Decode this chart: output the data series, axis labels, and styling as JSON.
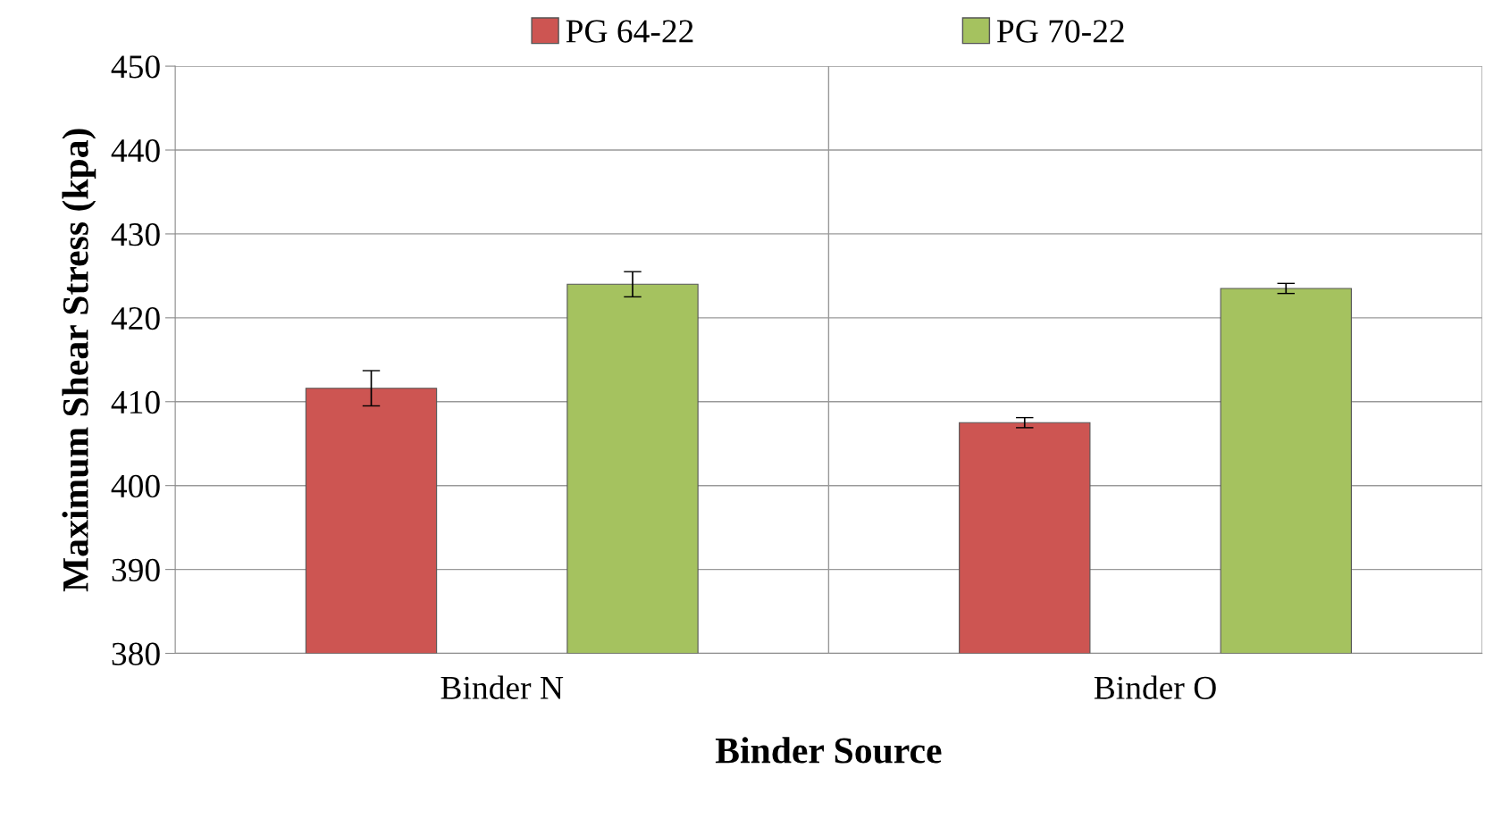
{
  "chart_data": {
    "type": "bar",
    "xlabel": "Binder Source",
    "ylabel": "Maximum Shear Stress (kpa)",
    "categories": [
      "Binder N",
      "Binder O"
    ],
    "series": [
      {
        "name": "PG 64-22",
        "color": "#cd5552",
        "values": [
          411.6,
          407.5
        ],
        "errors": [
          2.1,
          0.6
        ]
      },
      {
        "name": "PG 70-22",
        "color": "#a5c25f",
        "values": [
          424.0,
          423.5
        ],
        "errors": [
          1.5,
          0.6
        ]
      }
    ],
    "ylim": [
      380,
      450
    ],
    "yticks": [
      380,
      390,
      400,
      410,
      420,
      430,
      440,
      450
    ],
    "grid": true,
    "legend": "top"
  }
}
